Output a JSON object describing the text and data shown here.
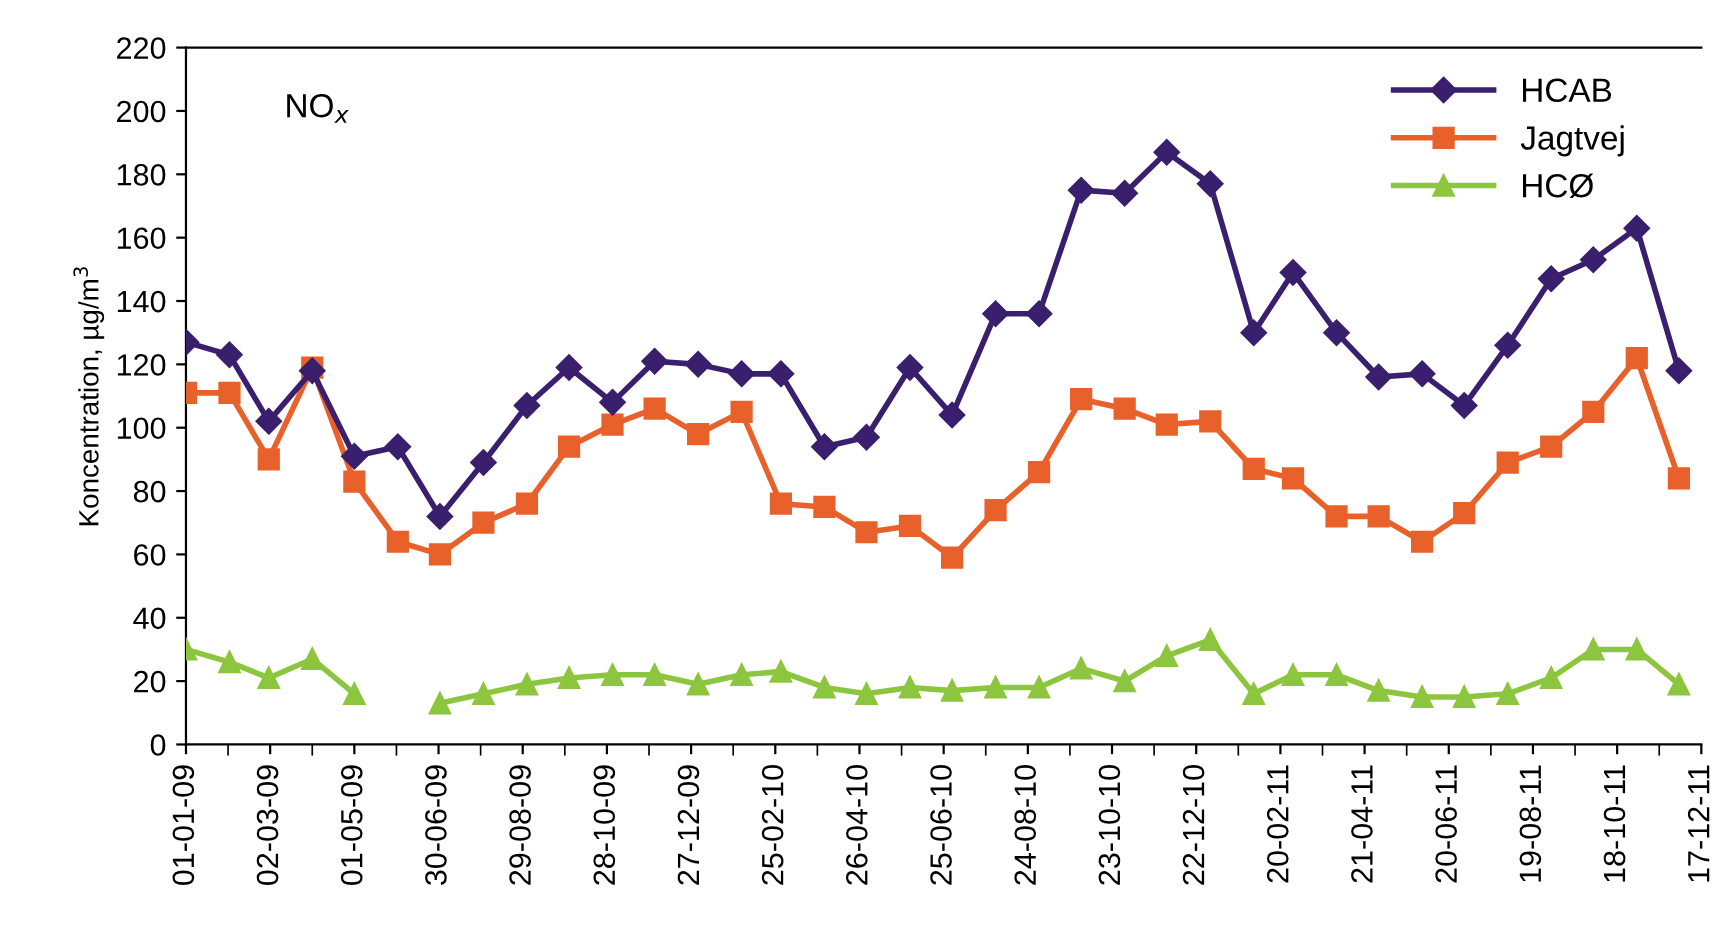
{
  "chart_data": {
    "type": "line",
    "ylabel": "Koncentration, µg/m$^{3}$",
    "annotations": [
      "NO$_{x}$"
    ],
    "x": [
      "2009-01-01",
      "2009-02-01",
      "2009-03-01",
      "2009-04-01",
      "2009-05-01",
      "2009-06-01",
      "2009-07-01",
      "2009-08-01",
      "2009-09-01",
      "2009-10-01",
      "2009-11-01",
      "2009-12-01",
      "2010-01-01",
      "2010-02-01",
      "2010-03-01",
      "2010-04-01",
      "2010-05-01",
      "2010-06-01",
      "2010-07-01",
      "2010-08-01",
      "2010-09-01",
      "2010-10-01",
      "2010-11-01",
      "2010-12-01",
      "2011-01-01",
      "2011-02-01",
      "2011-03-01",
      "2011-04-01",
      "2011-05-01",
      "2011-06-01",
      "2011-07-01",
      "2011-08-01",
      "2011-09-01",
      "2011-10-01",
      "2011-11-01",
      "2011-12-01"
    ],
    "series": [
      {
        "name": "HCAB",
        "color": "#3a1f6e",
        "marker": "diamond",
        "values": [
          127,
          123,
          102,
          118,
          91,
          94,
          72,
          89,
          107,
          119,
          108,
          121,
          120,
          117,
          117,
          94,
          97,
          119,
          104,
          136,
          136,
          175,
          174,
          187,
          177,
          130,
          149,
          130,
          116,
          117,
          107,
          126,
          147,
          153,
          163,
          118
        ]
      },
      {
        "name": "Jagtvej",
        "color": "#e8602a",
        "marker": "square",
        "values": [
          111,
          111,
          90,
          119,
          83,
          64,
          60,
          70,
          76,
          94,
          101,
          106,
          98,
          105,
          76,
          75,
          67,
          69,
          59,
          74,
          86,
          109,
          106,
          101,
          102,
          87,
          84,
          72,
          72,
          64,
          73,
          89,
          94,
          105,
          122,
          84
        ]
      },
      {
        "name": "HCØ",
        "color": "#8cc63f",
        "marker": "triangle",
        "values": [
          30,
          26,
          21,
          27,
          16,
          null,
          13,
          16,
          19,
          21,
          22,
          22,
          19,
          22,
          23,
          18,
          16,
          18,
          17,
          18,
          18,
          24,
          20,
          28,
          33,
          16,
          22,
          22,
          17,
          15,
          15,
          16,
          21,
          30,
          30,
          19
        ]
      }
    ],
    "xlim": [
      "2009-01-01",
      "2011-12-17"
    ],
    "xticks": [
      {
        "value": "2009-01-01",
        "label": "01-01-09"
      },
      {
        "value": "2009-03-02",
        "label": "02-03-09"
      },
      {
        "value": "2009-05-01",
        "label": "01-05-09"
      },
      {
        "value": "2009-06-30",
        "label": "30-06-09"
      },
      {
        "value": "2009-08-29",
        "label": "29-08-09"
      },
      {
        "value": "2009-10-28",
        "label": "28-10-09"
      },
      {
        "value": "2009-12-27",
        "label": "27-12-09"
      },
      {
        "value": "2010-02-25",
        "label": "25-02-10"
      },
      {
        "value": "2010-04-26",
        "label": "26-04-10"
      },
      {
        "value": "2010-06-25",
        "label": "25-06-10"
      },
      {
        "value": "2010-08-24",
        "label": "24-08-10"
      },
      {
        "value": "2010-10-23",
        "label": "23-10-10"
      },
      {
        "value": "2010-12-22",
        "label": "22-12-10"
      },
      {
        "value": "2011-02-20",
        "label": "20-02-11"
      },
      {
        "value": "2011-04-21",
        "label": "21-04-11"
      },
      {
        "value": "2011-06-20",
        "label": "20-06-11"
      },
      {
        "value": "2011-08-19",
        "label": "19-08-11"
      },
      {
        "value": "2011-10-18",
        "label": "18-10-11"
      },
      {
        "value": "2011-12-17",
        "label": "17-12-11"
      }
    ],
    "ylim": [
      0,
      220
    ],
    "yticks": [
      0,
      20,
      40,
      60,
      80,
      100,
      120,
      140,
      160,
      180,
      200,
      220
    ],
    "legend": "top right",
    "grid": false,
    "line_style": "solid"
  }
}
